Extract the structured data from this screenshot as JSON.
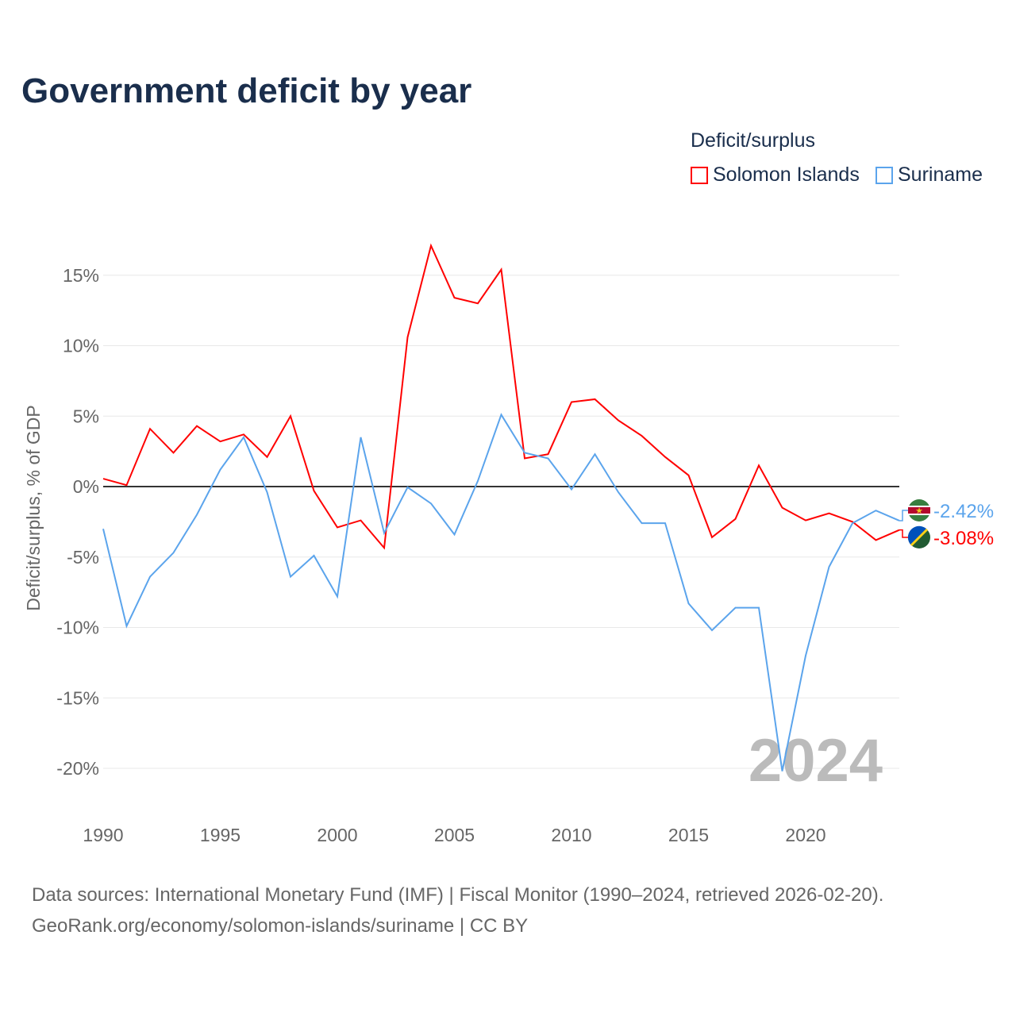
{
  "title": "Government deficit by year",
  "legend": {
    "title": "Deficit/surplus",
    "items": [
      {
        "label": "Solomon Islands",
        "color": "#ff0000"
      },
      {
        "label": "Suriname",
        "color": "#5ba4ec"
      }
    ]
  },
  "footer": {
    "line1": "Data sources: International Monetary Fund (IMF) | Fiscal Monitor (1990–2024, retrieved 2026-02-20).",
    "line2": "GeoRank.org/economy/solomon-islands/suriname | CC BY"
  },
  "chart_data": {
    "type": "line",
    "title": "Government deficit by year",
    "ylabel": "Deficit/surplus, % of GDP",
    "xlabel": "",
    "ylim": [
      -22,
      19
    ],
    "xlim": [
      1990,
      2024
    ],
    "yticks": [
      15,
      10,
      5,
      0,
      -5,
      -10,
      -15,
      -20
    ],
    "ytick_labels": [
      "15%",
      "10%",
      "5%",
      "0%",
      "-5%",
      "-10%",
      "-15%",
      "-20%"
    ],
    "xticks": [
      1990,
      1995,
      2000,
      2005,
      2010,
      2015,
      2020
    ],
    "xtick_labels": [
      "1990",
      "1995",
      "2000",
      "2005",
      "2010",
      "2015",
      "2020"
    ],
    "watermark_year": "2024",
    "x": [
      1990,
      1991,
      1992,
      1993,
      1994,
      1995,
      1996,
      1997,
      1998,
      1999,
      2000,
      2001,
      2002,
      2003,
      2004,
      2005,
      2006,
      2007,
      2008,
      2009,
      2010,
      2011,
      2012,
      2013,
      2014,
      2015,
      2016,
      2017,
      2018,
      2019,
      2020,
      2021,
      2022,
      2023,
      2024
    ],
    "series": [
      {
        "name": "Solomon Islands",
        "color": "#ff0000",
        "end_label": "-3.08%",
        "values": [
          0.56,
          0.1,
          4.1,
          2.4,
          4.3,
          3.2,
          3.7,
          2.1,
          5.0,
          -0.3,
          -2.9,
          -2.4,
          -4.35,
          10.6,
          17.1,
          13.4,
          13.0,
          15.4,
          2.0,
          2.3,
          6.0,
          6.2,
          4.7,
          3.6,
          2.1,
          0.8,
          -3.6,
          -2.3,
          1.5,
          -1.5,
          -2.4,
          -1.9,
          -2.5,
          -3.8,
          -3.08
        ]
      },
      {
        "name": "Suriname",
        "color": "#5ba4ec",
        "end_label": "-2.42%",
        "values": [
          -3.0,
          -9.9,
          -6.4,
          -4.7,
          -2.0,
          1.2,
          3.5,
          -0.4,
          -6.4,
          -4.9,
          -7.8,
          3.5,
          -3.3,
          -0.05,
          -1.2,
          -3.4,
          0.4,
          5.1,
          2.4,
          2.0,
          -0.2,
          2.3,
          -0.4,
          -2.6,
          -2.6,
          -8.3,
          -10.2,
          -8.6,
          -8.6,
          -20.2,
          -12.0,
          -5.7,
          -2.6,
          -1.7,
          -2.42
        ]
      }
    ]
  }
}
